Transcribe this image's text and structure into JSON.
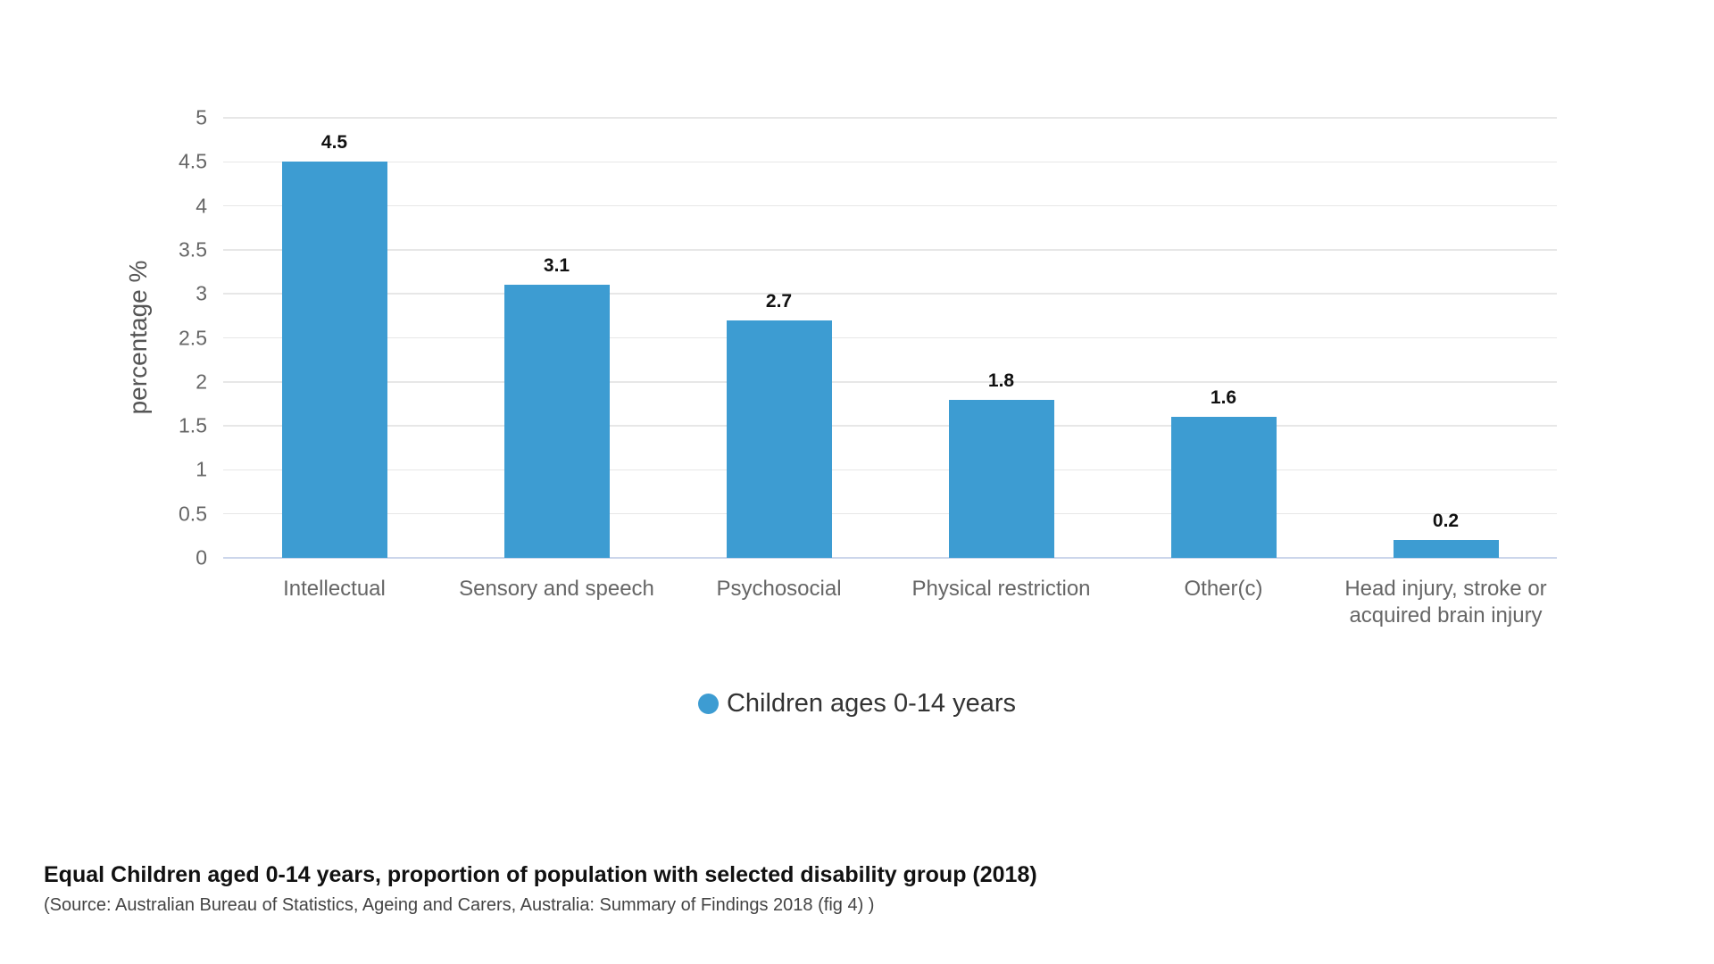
{
  "chart_data": {
    "type": "bar",
    "title": "Equal Children aged 0-14 years, proportion of population with selected disability group (2018)",
    "source": "(Source: Australian Bureau of Statistics, Ageing and Carers, Australia: Summary of Findings 2018 (fig 4) )",
    "ylabel": "percentage %",
    "xlabel": "",
    "categories": [
      "Intellectual",
      "Sensory and speech",
      "Psychosocial",
      "Physical restriction",
      "Other(c)",
      "Head injury, stroke or acquired brain injury"
    ],
    "values": [
      4.5,
      3.1,
      2.7,
      1.8,
      1.6,
      0.2
    ],
    "value_labels": [
      "4.5",
      "3.1",
      "2.7",
      "1.8",
      "1.6",
      "0.2"
    ],
    "ylim": [
      0,
      5
    ],
    "yticks": [
      0,
      0.5,
      1,
      1.5,
      2,
      2.5,
      3,
      3.5,
      4,
      4.5,
      5
    ],
    "ytick_labels": [
      "0",
      "0.5",
      "1",
      "1.5",
      "2",
      "2.5",
      "3",
      "3.5",
      "4",
      "4.5",
      "5"
    ],
    "grid": true,
    "legend": {
      "position": "bottom",
      "items": [
        {
          "label": "Children ages 0-14 years",
          "color": "#3d9cd2",
          "marker": "circle-icon"
        }
      ]
    },
    "colors": {
      "bar": "#3d9cd2",
      "gridline": "#e7e7e7",
      "axis_line": "#ccd6eb",
      "tick_label": "#666666",
      "value_label": "#111111"
    }
  }
}
